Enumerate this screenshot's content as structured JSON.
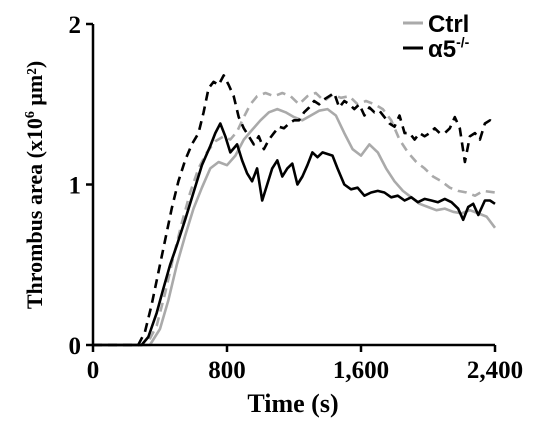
{
  "chart_data": {
    "type": "line",
    "xlabel": "Time (s)",
    "ylabel": {
      "main": "Thrombus area (x10",
      "sup": "6",
      "unit": " μm²)"
    },
    "xlim": [
      0,
      2400
    ],
    "ylim": [
      0,
      2
    ],
    "x_ticks": [
      0,
      800,
      1600,
      2400
    ],
    "x_tick_labels": [
      "0",
      "800",
      "1,600",
      "2,400"
    ],
    "y_ticks": [
      0,
      1,
      2
    ],
    "y_tick_labels": [
      "0",
      "1",
      "2"
    ],
    "grid": false,
    "legend_position": "top-right",
    "legend": [
      {
        "label": "Ctrl",
        "sup": "",
        "color": "#aaaaaa"
      },
      {
        "label": "α5",
        "sup": "-/-",
        "color": "#000000"
      }
    ],
    "series": [
      {
        "group": "Ctrl",
        "style": "solid",
        "color": "#aaaaaa",
        "points": [
          [
            0,
            0
          ],
          [
            340,
            0
          ],
          [
            400,
            0.1
          ],
          [
            450,
            0.28
          ],
          [
            500,
            0.5
          ],
          [
            550,
            0.68
          ],
          [
            600,
            0.85
          ],
          [
            650,
            0.98
          ],
          [
            700,
            1.1
          ],
          [
            750,
            1.14
          ],
          [
            800,
            1.12
          ],
          [
            850,
            1.18
          ],
          [
            900,
            1.28
          ],
          [
            950,
            1.34
          ],
          [
            1000,
            1.4
          ],
          [
            1050,
            1.45
          ],
          [
            1100,
            1.47
          ],
          [
            1150,
            1.45
          ],
          [
            1200,
            1.42
          ],
          [
            1250,
            1.4
          ],
          [
            1300,
            1.43
          ],
          [
            1350,
            1.46
          ],
          [
            1400,
            1.47
          ],
          [
            1450,
            1.43
          ],
          [
            1500,
            1.32
          ],
          [
            1550,
            1.22
          ],
          [
            1600,
            1.18
          ],
          [
            1650,
            1.25
          ],
          [
            1700,
            1.2
          ],
          [
            1750,
            1.1
          ],
          [
            1800,
            1.02
          ],
          [
            1850,
            0.96
          ],
          [
            1900,
            0.92
          ],
          [
            1950,
            0.88
          ],
          [
            2000,
            0.86
          ],
          [
            2050,
            0.84
          ],
          [
            2100,
            0.85
          ],
          [
            2150,
            0.83
          ],
          [
            2200,
            0.82
          ],
          [
            2250,
            0.84
          ],
          [
            2300,
            0.82
          ],
          [
            2350,
            0.8
          ],
          [
            2400,
            0.73
          ]
        ]
      },
      {
        "group": "Ctrl",
        "style": "dashed",
        "color": "#aaaaaa",
        "points": [
          [
            0,
            0
          ],
          [
            320,
            0
          ],
          [
            380,
            0.12
          ],
          [
            430,
            0.32
          ],
          [
            480,
            0.55
          ],
          [
            530,
            0.76
          ],
          [
            580,
            0.95
          ],
          [
            630,
            1.1
          ],
          [
            680,
            1.2
          ],
          [
            730,
            1.27
          ],
          [
            780,
            1.3
          ],
          [
            820,
            1.28
          ],
          [
            860,
            1.33
          ],
          [
            900,
            1.42
          ],
          [
            940,
            1.5
          ],
          [
            980,
            1.55
          ],
          [
            1030,
            1.57
          ],
          [
            1080,
            1.55
          ],
          [
            1130,
            1.57
          ],
          [
            1180,
            1.55
          ],
          [
            1230,
            1.5
          ],
          [
            1280,
            1.55
          ],
          [
            1330,
            1.57
          ],
          [
            1380,
            1.52
          ],
          [
            1430,
            1.56
          ],
          [
            1480,
            1.54
          ],
          [
            1530,
            1.55
          ],
          [
            1580,
            1.5
          ],
          [
            1630,
            1.52
          ],
          [
            1680,
            1.5
          ],
          [
            1730,
            1.47
          ],
          [
            1780,
            1.4
          ],
          [
            1830,
            1.28
          ],
          [
            1880,
            1.2
          ],
          [
            1930,
            1.14
          ],
          [
            1980,
            1.1
          ],
          [
            2030,
            1.05
          ],
          [
            2080,
            1.02
          ],
          [
            2130,
            0.98
          ],
          [
            2180,
            0.96
          ],
          [
            2230,
            0.95
          ],
          [
            2280,
            0.93
          ],
          [
            2330,
            0.96
          ],
          [
            2400,
            0.95
          ]
        ]
      },
      {
        "group": "α5-/-",
        "style": "solid",
        "color": "#000000",
        "points": [
          [
            0,
            0
          ],
          [
            290,
            0
          ],
          [
            330,
            0.05
          ],
          [
            380,
            0.2
          ],
          [
            420,
            0.35
          ],
          [
            460,
            0.5
          ],
          [
            500,
            0.62
          ],
          [
            550,
            0.78
          ],
          [
            600,
            0.95
          ],
          [
            650,
            1.12
          ],
          [
            700,
            1.24
          ],
          [
            730,
            1.32
          ],
          [
            760,
            1.38
          ],
          [
            790,
            1.3
          ],
          [
            820,
            1.2
          ],
          [
            860,
            1.25
          ],
          [
            890,
            1.15
          ],
          [
            920,
            1.07
          ],
          [
            950,
            1.02
          ],
          [
            980,
            1.1
          ],
          [
            1010,
            0.9
          ],
          [
            1040,
            1.0
          ],
          [
            1070,
            1.1
          ],
          [
            1100,
            1.15
          ],
          [
            1130,
            1.05
          ],
          [
            1160,
            1.1
          ],
          [
            1190,
            1.13
          ],
          [
            1220,
            1.0
          ],
          [
            1250,
            1.05
          ],
          [
            1280,
            1.12
          ],
          [
            1310,
            1.2
          ],
          [
            1340,
            1.17
          ],
          [
            1370,
            1.2
          ],
          [
            1400,
            1.19
          ],
          [
            1430,
            1.18
          ],
          [
            1460,
            1.1
          ],
          [
            1500,
            1.0
          ],
          [
            1540,
            0.97
          ],
          [
            1580,
            0.98
          ],
          [
            1620,
            0.93
          ],
          [
            1660,
            0.95
          ],
          [
            1700,
            0.96
          ],
          [
            1740,
            0.95
          ],
          [
            1780,
            0.92
          ],
          [
            1820,
            0.93
          ],
          [
            1860,
            0.9
          ],
          [
            1900,
            0.92
          ],
          [
            1940,
            0.89
          ],
          [
            1980,
            0.91
          ],
          [
            2020,
            0.9
          ],
          [
            2060,
            0.89
          ],
          [
            2100,
            0.91
          ],
          [
            2140,
            0.89
          ],
          [
            2180,
            0.85
          ],
          [
            2210,
            0.78
          ],
          [
            2240,
            0.86
          ],
          [
            2270,
            0.88
          ],
          [
            2300,
            0.81
          ],
          [
            2340,
            0.9
          ],
          [
            2370,
            0.9
          ],
          [
            2400,
            0.88
          ]
        ]
      },
      {
        "group": "α5-/-",
        "style": "dashed",
        "color": "#000000",
        "points": [
          [
            0,
            0
          ],
          [
            270,
            0
          ],
          [
            310,
            0.08
          ],
          [
            350,
            0.25
          ],
          [
            390,
            0.45
          ],
          [
            430,
            0.65
          ],
          [
            470,
            0.85
          ],
          [
            510,
            1.02
          ],
          [
            550,
            1.15
          ],
          [
            590,
            1.25
          ],
          [
            630,
            1.32
          ],
          [
            660,
            1.45
          ],
          [
            690,
            1.6
          ],
          [
            720,
            1.64
          ],
          [
            750,
            1.62
          ],
          [
            780,
            1.68
          ],
          [
            810,
            1.62
          ],
          [
            840,
            1.55
          ],
          [
            870,
            1.42
          ],
          [
            900,
            1.35
          ],
          [
            930,
            1.3
          ],
          [
            960,
            1.25
          ],
          [
            990,
            1.3
          ],
          [
            1020,
            1.22
          ],
          [
            1050,
            1.28
          ],
          [
            1080,
            1.32
          ],
          [
            1110,
            1.36
          ],
          [
            1140,
            1.35
          ],
          [
            1170,
            1.38
          ],
          [
            1200,
            1.4
          ],
          [
            1230,
            1.4
          ],
          [
            1260,
            1.45
          ],
          [
            1290,
            1.48
          ],
          [
            1320,
            1.52
          ],
          [
            1350,
            1.5
          ],
          [
            1380,
            1.53
          ],
          [
            1410,
            1.55
          ],
          [
            1440,
            1.57
          ],
          [
            1470,
            1.48
          ],
          [
            1500,
            1.52
          ],
          [
            1530,
            1.5
          ],
          [
            1560,
            1.47
          ],
          [
            1590,
            1.5
          ],
          [
            1620,
            1.43
          ],
          [
            1650,
            1.48
          ],
          [
            1680,
            1.45
          ],
          [
            1710,
            1.46
          ],
          [
            1740,
            1.42
          ],
          [
            1770,
            1.38
          ],
          [
            1800,
            1.36
          ],
          [
            1830,
            1.43
          ],
          [
            1860,
            1.32
          ],
          [
            1890,
            1.32
          ],
          [
            1920,
            1.28
          ],
          [
            1950,
            1.32
          ],
          [
            1980,
            1.3
          ],
          [
            2010,
            1.32
          ],
          [
            2040,
            1.35
          ],
          [
            2070,
            1.32
          ],
          [
            2100,
            1.32
          ],
          [
            2130,
            1.35
          ],
          [
            2160,
            1.42
          ],
          [
            2190,
            1.35
          ],
          [
            2220,
            1.14
          ],
          [
            2250,
            1.3
          ],
          [
            2280,
            1.32
          ],
          [
            2310,
            1.28
          ],
          [
            2340,
            1.38
          ],
          [
            2370,
            1.4
          ],
          [
            2400,
            1.38
          ]
        ]
      }
    ]
  }
}
